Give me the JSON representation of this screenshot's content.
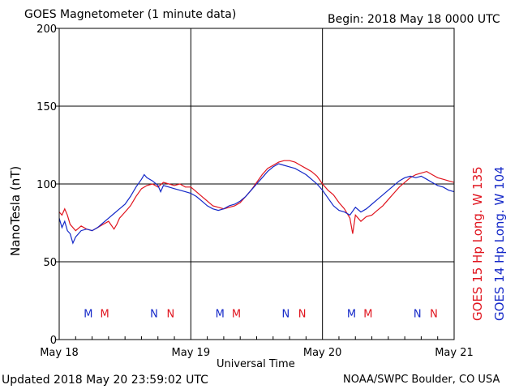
{
  "header": {
    "title": "GOES Magnetometer (1 minute data)",
    "begin": "Begin:  2018 May 18 0000 UTC"
  },
  "footer": {
    "updated": "Updated 2018 May 20 23:59:02 UTC",
    "credit": "NOAA/SWPC Boulder, CO USA"
  },
  "legend": {
    "red_label": "GOES 15 Hp  Long. W 135",
    "blue_label": "GOES 14 Hp  Long. W 104"
  },
  "colors": {
    "red": "#e0141e",
    "blue": "#1428c8",
    "axis": "#000000"
  },
  "chart_data": {
    "type": "line",
    "title": "GOES Magnetometer (1 minute data)",
    "xlabel": "Universal Time",
    "ylabel": "NanoTesla (nT)",
    "ylim": [
      0,
      200
    ],
    "xlim": [
      0,
      72
    ],
    "x_unit": "hours since 2018 May 18 0000 UTC",
    "y_ticks": [
      0,
      50,
      100,
      150,
      200
    ],
    "x_ticks": [
      {
        "x": 0,
        "label": "May 18"
      },
      {
        "x": 24,
        "label": "May 19"
      },
      {
        "x": 48,
        "label": "May 20"
      },
      {
        "x": 72,
        "label": "May 21"
      }
    ],
    "grid": true,
    "series": [
      {
        "name": "GOES 15 Hp  Long. W 135",
        "color": "#e0141e",
        "points": [
          [
            0,
            82
          ],
          [
            0.5,
            80
          ],
          [
            1,
            84
          ],
          [
            1.5,
            80
          ],
          [
            2,
            74
          ],
          [
            3,
            70
          ],
          [
            4,
            73
          ],
          [
            5,
            71
          ],
          [
            6,
            70
          ],
          [
            7,
            72
          ],
          [
            8,
            74
          ],
          [
            9,
            76
          ],
          [
            10,
            71
          ],
          [
            10.5,
            74
          ],
          [
            11,
            78
          ],
          [
            12,
            82
          ],
          [
            13,
            86
          ],
          [
            14,
            92
          ],
          [
            15,
            97
          ],
          [
            16,
            99
          ],
          [
            17,
            100
          ],
          [
            18,
            98
          ],
          [
            19,
            101
          ],
          [
            20,
            100
          ],
          [
            21,
            99
          ],
          [
            22,
            100
          ],
          [
            23,
            98
          ],
          [
            24,
            98
          ],
          [
            25,
            95
          ],
          [
            26,
            92
          ],
          [
            27,
            89
          ],
          [
            28,
            86
          ],
          [
            29,
            85
          ],
          [
            30,
            84
          ],
          [
            31,
            85
          ],
          [
            32,
            86
          ],
          [
            33,
            88
          ],
          [
            34,
            92
          ],
          [
            35,
            96
          ],
          [
            36,
            101
          ],
          [
            37,
            106
          ],
          [
            38,
            110
          ],
          [
            39,
            112
          ],
          [
            40,
            114
          ],
          [
            41,
            115
          ],
          [
            42,
            115
          ],
          [
            43,
            114
          ],
          [
            44,
            112
          ],
          [
            45,
            110
          ],
          [
            46,
            108
          ],
          [
            47,
            105
          ],
          [
            48,
            100
          ],
          [
            49,
            96
          ],
          [
            50,
            93
          ],
          [
            51,
            88
          ],
          [
            52,
            84
          ],
          [
            53,
            78
          ],
          [
            53.5,
            68
          ],
          [
            54,
            80
          ],
          [
            55,
            76
          ],
          [
            56,
            79
          ],
          [
            57,
            80
          ],
          [
            58,
            83
          ],
          [
            59,
            86
          ],
          [
            60,
            90
          ],
          [
            61,
            94
          ],
          [
            62,
            98
          ],
          [
            63,
            101
          ],
          [
            64,
            104
          ],
          [
            65,
            106
          ],
          [
            66,
            107
          ],
          [
            67,
            108
          ],
          [
            68,
            106
          ],
          [
            69,
            104
          ],
          [
            70,
            103
          ],
          [
            71,
            102
          ],
          [
            72,
            101
          ]
        ]
      },
      {
        "name": "GOES 14 Hp  Long. W 104",
        "color": "#1428c8",
        "points": [
          [
            0,
            78
          ],
          [
            0.5,
            72
          ],
          [
            1,
            76
          ],
          [
            1.5,
            70
          ],
          [
            2,
            68
          ],
          [
            2.5,
            62
          ],
          [
            3,
            66
          ],
          [
            4,
            70
          ],
          [
            5,
            71
          ],
          [
            6,
            70
          ],
          [
            7,
            72
          ],
          [
            8,
            75
          ],
          [
            9,
            78
          ],
          [
            10,
            81
          ],
          [
            11,
            84
          ],
          [
            12,
            87
          ],
          [
            13,
            92
          ],
          [
            14,
            98
          ],
          [
            15,
            103
          ],
          [
            15.5,
            106
          ],
          [
            16,
            104
          ],
          [
            17,
            102
          ],
          [
            18,
            99
          ],
          [
            18.5,
            95
          ],
          [
            19,
            99
          ],
          [
            20,
            98
          ],
          [
            21,
            97
          ],
          [
            22,
            96
          ],
          [
            23,
            95
          ],
          [
            24,
            94
          ],
          [
            25,
            92
          ],
          [
            26,
            89
          ],
          [
            27,
            86
          ],
          [
            28,
            84
          ],
          [
            29,
            83
          ],
          [
            30,
            84
          ],
          [
            31,
            86
          ],
          [
            32,
            87
          ],
          [
            33,
            89
          ],
          [
            34,
            92
          ],
          [
            35,
            96
          ],
          [
            36,
            100
          ],
          [
            37,
            104
          ],
          [
            38,
            108
          ],
          [
            39,
            111
          ],
          [
            40,
            113
          ],
          [
            41,
            112
          ],
          [
            42,
            111
          ],
          [
            43,
            110
          ],
          [
            44,
            108
          ],
          [
            45,
            106
          ],
          [
            46,
            103
          ],
          [
            47,
            100
          ],
          [
            48,
            96
          ],
          [
            49,
            91
          ],
          [
            50,
            86
          ],
          [
            51,
            83
          ],
          [
            52,
            82
          ],
          [
            53,
            80
          ],
          [
            54,
            85
          ],
          [
            55,
            82
          ],
          [
            56,
            84
          ],
          [
            57,
            87
          ],
          [
            58,
            90
          ],
          [
            59,
            93
          ],
          [
            60,
            96
          ],
          [
            61,
            99
          ],
          [
            62,
            102
          ],
          [
            63,
            104
          ],
          [
            64,
            105
          ],
          [
            65,
            104
          ],
          [
            66,
            105
          ],
          [
            67,
            103
          ],
          [
            68,
            101
          ],
          [
            69,
            99
          ],
          [
            70,
            98
          ],
          [
            71,
            96
          ],
          [
            72,
            95
          ]
        ]
      }
    ],
    "markers": [
      {
        "x": 5.3,
        "label": "M",
        "color": "#1428c8"
      },
      {
        "x": 8.3,
        "label": "M",
        "color": "#e0141e"
      },
      {
        "x": 17.3,
        "label": "N",
        "color": "#1428c8"
      },
      {
        "x": 20.3,
        "label": "N",
        "color": "#e0141e"
      },
      {
        "x": 29.3,
        "label": "M",
        "color": "#1428c8"
      },
      {
        "x": 32.3,
        "label": "M",
        "color": "#e0141e"
      },
      {
        "x": 41.3,
        "label": "N",
        "color": "#1428c8"
      },
      {
        "x": 44.3,
        "label": "N",
        "color": "#e0141e"
      },
      {
        "x": 53.3,
        "label": "M",
        "color": "#1428c8"
      },
      {
        "x": 56.3,
        "label": "M",
        "color": "#e0141e"
      },
      {
        "x": 65.3,
        "label": "N",
        "color": "#1428c8"
      },
      {
        "x": 68.3,
        "label": "N",
        "color": "#e0141e"
      }
    ],
    "marker_y": 17
  }
}
